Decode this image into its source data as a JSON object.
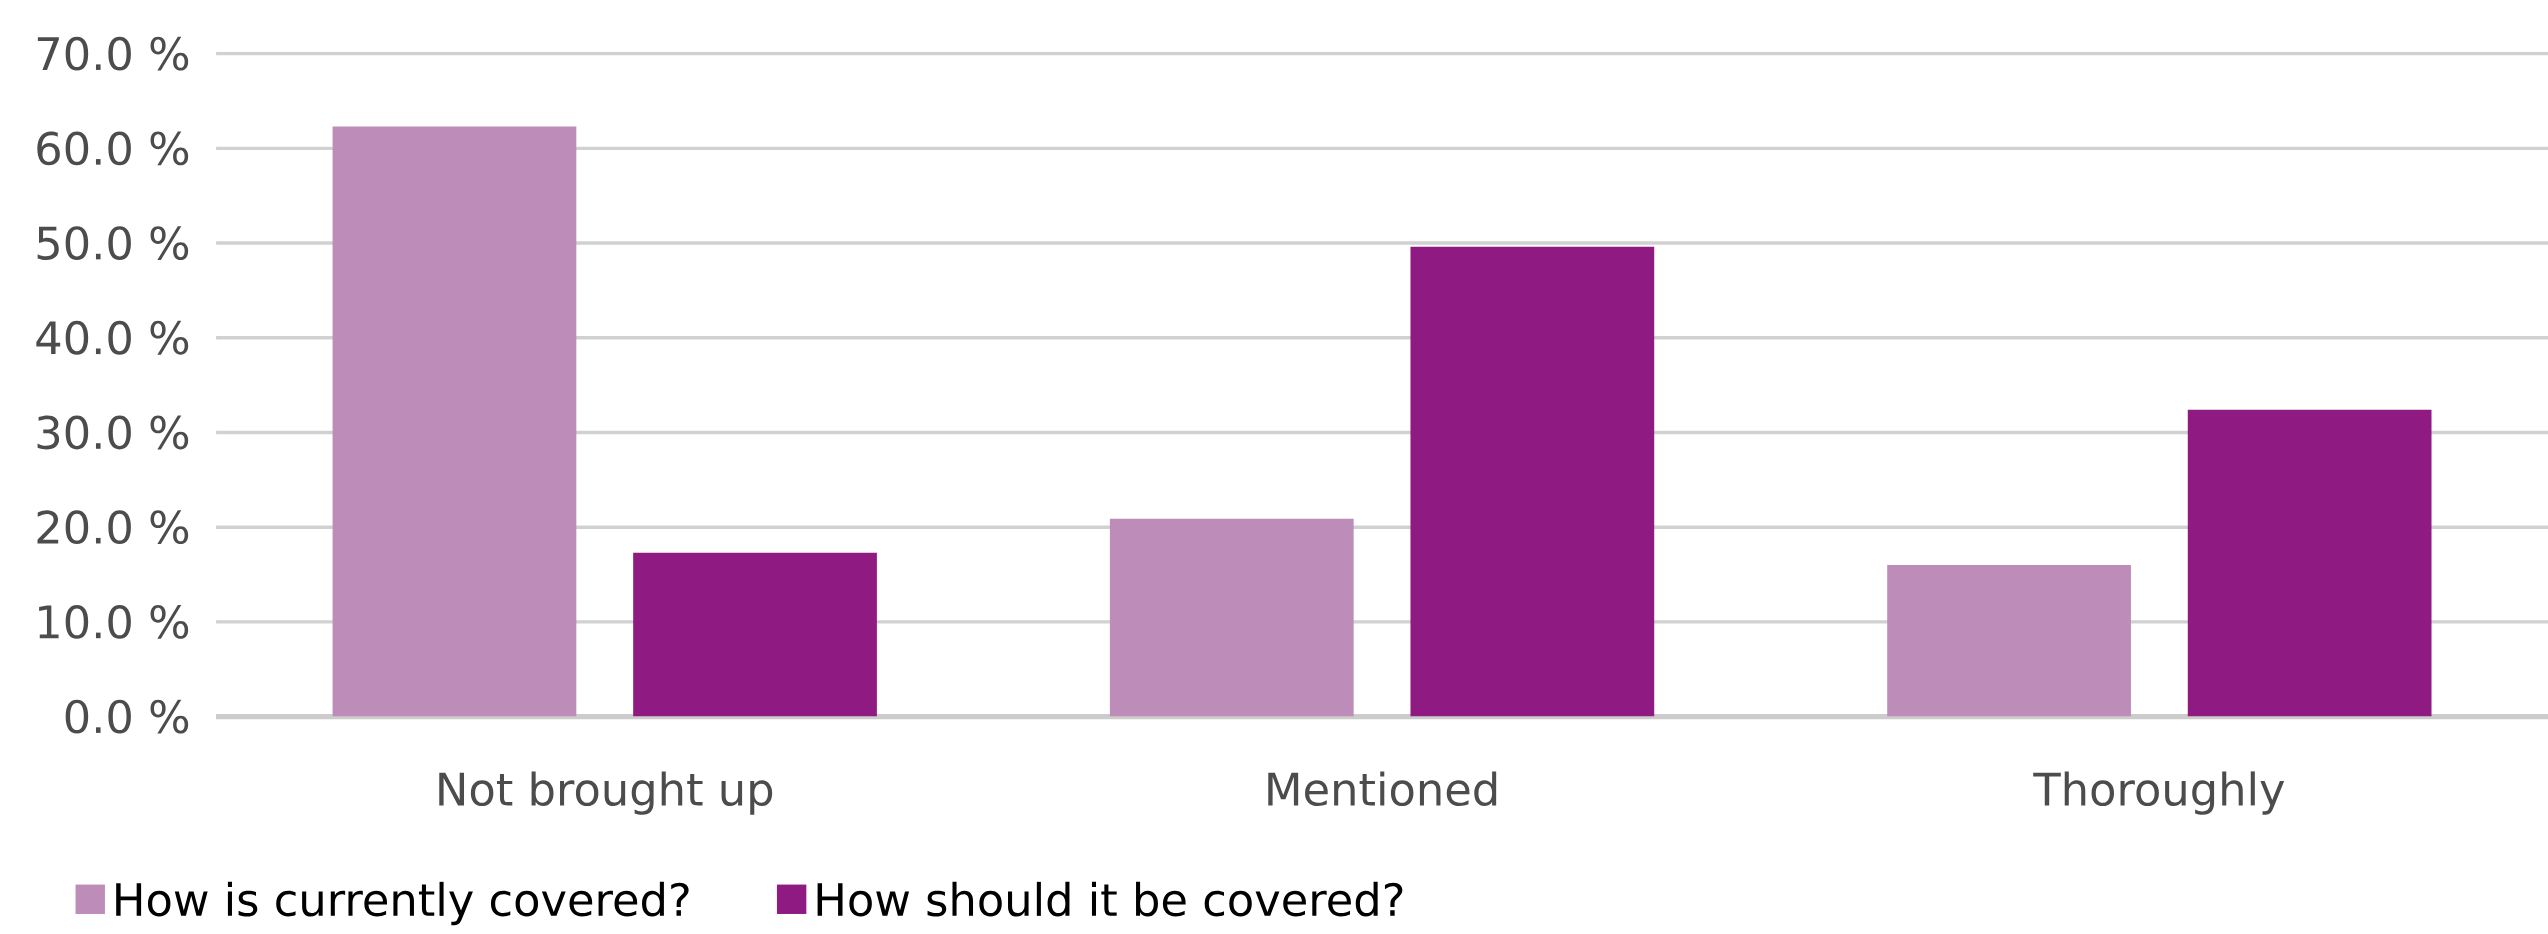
{
  "chart_data": {
    "type": "bar",
    "categories": [
      "Not brought up",
      "Mentioned",
      "Thoroughly"
    ],
    "series": [
      {
        "name": "How is currently covered?",
        "color": "#bd8cb8",
        "values": [
          62.3,
          20.9,
          16.0
        ]
      },
      {
        "name": "How should it be covered?",
        "color": "#8f1a82",
        "values": [
          17.3,
          49.6,
          32.4
        ]
      }
    ],
    "ylim": [
      0,
      70
    ],
    "yticks": [
      {
        "value": 0,
        "label": "0.0 %"
      },
      {
        "value": 10,
        "label": "10.0 %"
      },
      {
        "value": 20,
        "label": "20.0 %"
      },
      {
        "value": 30,
        "label": "30.0 %"
      },
      {
        "value": 40,
        "label": "40.0 %"
      },
      {
        "value": 50,
        "label": "50.0 %"
      },
      {
        "value": 60,
        "label": "60.0 %"
      },
      {
        "value": 70,
        "label": "70.0 %"
      }
    ],
    "grid": "y",
    "legend": "bottom left"
  }
}
